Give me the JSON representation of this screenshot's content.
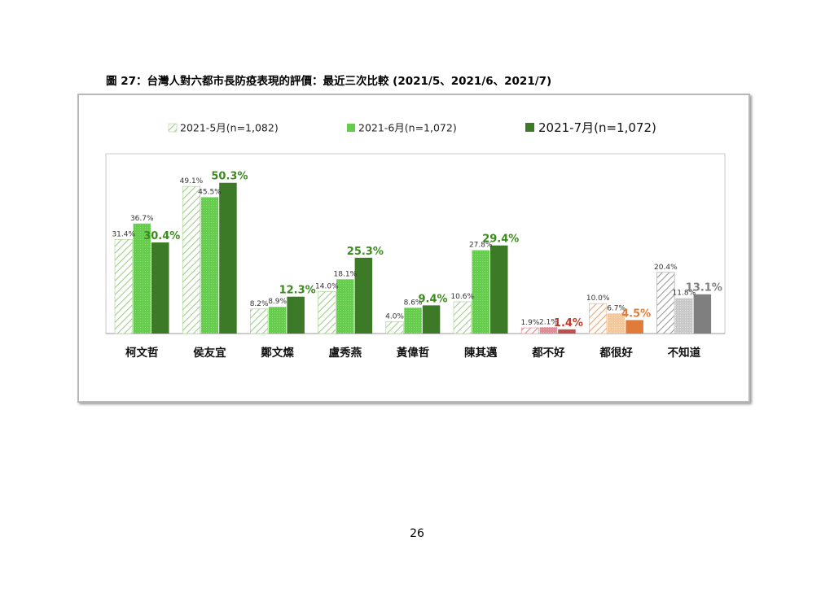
{
  "figure_title": "圖 27：台灣人對六都市長防疫表現的評價：最近三次比較 (2021/5、2021/6、2021/7)",
  "page_number": "26",
  "chart_data": {
    "type": "bar",
    "title": "圖 27：台灣人對六都市長防疫表現的評價：最近三次比較 (2021/5、2021/6、2021/7)",
    "xlabel": "",
    "ylabel": "",
    "ylim": [
      0,
      60
    ],
    "grid": false,
    "legend_position": "top",
    "categories": [
      "柯文哲",
      "侯友宜",
      "鄭文燦",
      "盧秀燕",
      "黃偉哲",
      "陳其邁",
      "都不好",
      "都很好",
      "不知道"
    ],
    "series": [
      {
        "name": "2021-5月(n=1,082)",
        "values": [
          31.4,
          49.1,
          8.2,
          14.0,
          4.0,
          10.6,
          1.9,
          10.0,
          20.4
        ],
        "labels": [
          "31.4%",
          "49.1%",
          "8.2%",
          "14.0%",
          "4.0%",
          "10.6%",
          "1.9%",
          "10.0%",
          "20.4%"
        ]
      },
      {
        "name": "2021-6月(n=1,072)",
        "values": [
          36.7,
          45.5,
          8.9,
          18.1,
          8.6,
          27.8,
          2.1,
          6.7,
          11.8
        ],
        "labels": [
          "36.7%",
          "45.5%",
          "8.9%",
          "18.1%",
          "8.6%",
          "27.8%",
          "2.1%",
          "6.7%",
          "11.8%"
        ]
      },
      {
        "name": "2021-7月(n=1,072)",
        "values": [
          30.4,
          50.3,
          12.3,
          25.3,
          9.4,
          29.4,
          1.4,
          4.5,
          13.1
        ],
        "labels": [
          "30.4%",
          "50.3%",
          "12.3%",
          "25.3%",
          "9.4%",
          "29.4%",
          "1.4%",
          "4.5%",
          "13.1%"
        ]
      }
    ],
    "colors": {
      "mayor": [
        "#9fcf8a",
        "#66cc4d",
        "#3d7a27"
      ],
      "none_good": [
        "#d98a94",
        "#e08c96",
        "#c0504d"
      ],
      "all_good": [
        "#e8a878",
        "#f2c79a",
        "#e07b39"
      ],
      "unknown": [
        "#9a9a9a",
        "#c8c8c8",
        "#7f7f7f"
      ],
      "highlight_label": [
        "#3d8a1f",
        "#3d8a1f",
        "#3d8a1f",
        "#3d8a1f",
        "#3d8a1f",
        "#3d8a1f",
        "#c0392b",
        "#e07b39",
        "#7f7f7f"
      ]
    }
  }
}
